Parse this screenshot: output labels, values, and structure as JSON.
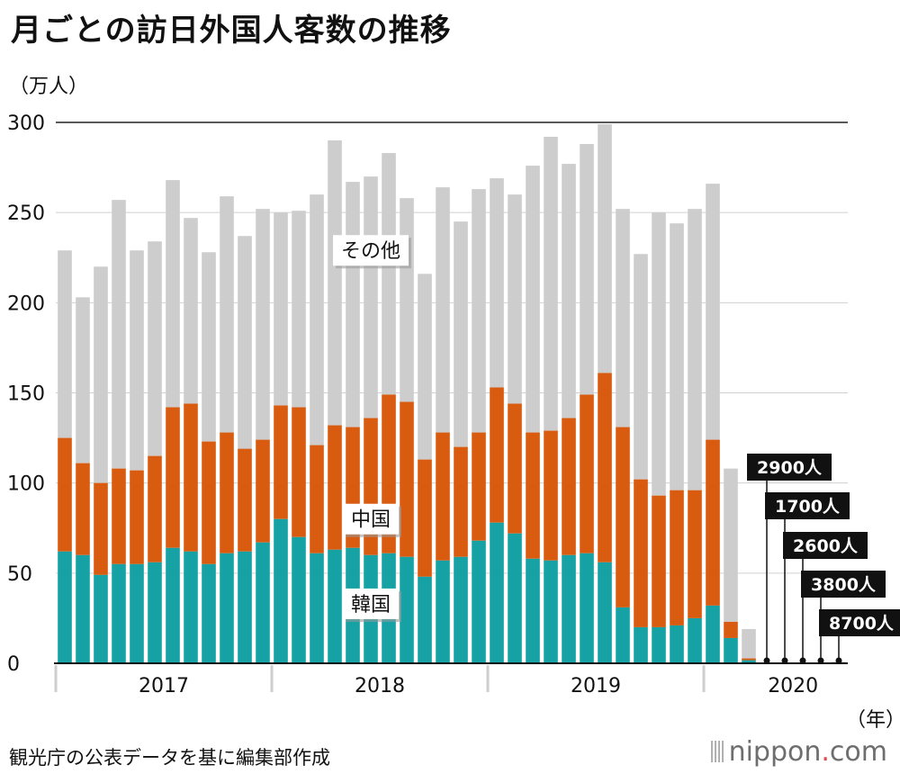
{
  "header": {
    "title": "月ごとの訪日外国人客数の推移",
    "unit": "（万人）",
    "year_unit": "（年）"
  },
  "footer": {
    "source": "観光庁の公表データを基に編集部作成",
    "brand_name": "nippon",
    "brand_dot": ".",
    "brand_suffix": "com"
  },
  "chart_data": {
    "type": "bar",
    "stacked": true,
    "ylim": [
      0,
      300
    ],
    "yticks": [
      0,
      50,
      100,
      150,
      200,
      250,
      300
    ],
    "grid": true,
    "year_labels": [
      "2017",
      "2018",
      "2019",
      "2020"
    ],
    "colors": {
      "韓国": "#16a2a4",
      "中国": "#d95b10",
      "その他": "#cdcdcd"
    },
    "series_labels": [
      "韓国",
      "中国",
      "その他"
    ],
    "months": [
      {
        "year": 2017,
        "month": 1,
        "korea": 62,
        "china": 63,
        "total": 229
      },
      {
        "year": 2017,
        "month": 2,
        "korea": 60,
        "china": 51,
        "total": 203
      },
      {
        "year": 2017,
        "month": 3,
        "korea": 49,
        "china": 51,
        "total": 220
      },
      {
        "year": 2017,
        "month": 4,
        "korea": 55,
        "china": 53,
        "total": 257
      },
      {
        "year": 2017,
        "month": 5,
        "korea": 55,
        "china": 52,
        "total": 229
      },
      {
        "year": 2017,
        "month": 6,
        "korea": 56,
        "china": 59,
        "total": 234
      },
      {
        "year": 2017,
        "month": 7,
        "korea": 64,
        "china": 78,
        "total": 268
      },
      {
        "year": 2017,
        "month": 8,
        "korea": 62,
        "china": 82,
        "total": 247
      },
      {
        "year": 2017,
        "month": 9,
        "korea": 55,
        "china": 68,
        "total": 228
      },
      {
        "year": 2017,
        "month": 10,
        "korea": 61,
        "china": 67,
        "total": 259
      },
      {
        "year": 2017,
        "month": 11,
        "korea": 62,
        "china": 57,
        "total": 237
      },
      {
        "year": 2017,
        "month": 12,
        "korea": 67,
        "china": 57,
        "total": 252
      },
      {
        "year": 2018,
        "month": 1,
        "korea": 80,
        "china": 63,
        "total": 250
      },
      {
        "year": 2018,
        "month": 2,
        "korea": 70,
        "china": 72,
        "total": 251
      },
      {
        "year": 2018,
        "month": 3,
        "korea": 61,
        "china": 60,
        "total": 260
      },
      {
        "year": 2018,
        "month": 4,
        "korea": 63,
        "china": 69,
        "total": 290
      },
      {
        "year": 2018,
        "month": 5,
        "korea": 64,
        "china": 67,
        "total": 267
      },
      {
        "year": 2018,
        "month": 6,
        "korea": 60,
        "china": 76,
        "total": 270
      },
      {
        "year": 2018,
        "month": 7,
        "korea": 61,
        "china": 88,
        "total": 283
      },
      {
        "year": 2018,
        "month": 8,
        "korea": 59,
        "china": 86,
        "total": 258
      },
      {
        "year": 2018,
        "month": 9,
        "korea": 48,
        "china": 65,
        "total": 216
      },
      {
        "year": 2018,
        "month": 10,
        "korea": 57,
        "china": 71,
        "total": 264
      },
      {
        "year": 2018,
        "month": 11,
        "korea": 59,
        "china": 61,
        "total": 245
      },
      {
        "year": 2018,
        "month": 12,
        "korea": 68,
        "china": 60,
        "total": 263
      },
      {
        "year": 2019,
        "month": 1,
        "korea": 78,
        "china": 75,
        "total": 269
      },
      {
        "year": 2019,
        "month": 2,
        "korea": 72,
        "china": 72,
        "total": 260
      },
      {
        "year": 2019,
        "month": 3,
        "korea": 58,
        "china": 70,
        "total": 276
      },
      {
        "year": 2019,
        "month": 4,
        "korea": 57,
        "china": 72,
        "total": 292
      },
      {
        "year": 2019,
        "month": 5,
        "korea": 60,
        "china": 76,
        "total": 277
      },
      {
        "year": 2019,
        "month": 6,
        "korea": 61,
        "china": 88,
        "total": 288
      },
      {
        "year": 2019,
        "month": 7,
        "korea": 56,
        "china": 105,
        "total": 299
      },
      {
        "year": 2019,
        "month": 8,
        "korea": 31,
        "china": 100,
        "total": 252
      },
      {
        "year": 2019,
        "month": 9,
        "korea": 20,
        "china": 82,
        "total": 227
      },
      {
        "year": 2019,
        "month": 10,
        "korea": 20,
        "china": 73,
        "total": 250
      },
      {
        "year": 2019,
        "month": 11,
        "korea": 21,
        "china": 75,
        "total": 244
      },
      {
        "year": 2019,
        "month": 12,
        "korea": 25,
        "china": 71,
        "total": 252
      },
      {
        "year": 2020,
        "month": 1,
        "korea": 32,
        "china": 92,
        "total": 266
      },
      {
        "year": 2020,
        "month": 2,
        "korea": 14,
        "china": 9,
        "total": 108
      },
      {
        "year": 2020,
        "month": 3,
        "korea": 1.7,
        "china": 1.0,
        "total": 19
      },
      {
        "year": 2020,
        "month": 4,
        "korea": 0,
        "china": 0,
        "total": 0.29,
        "label": "2900人"
      },
      {
        "year": 2020,
        "month": 5,
        "korea": 0,
        "china": 0,
        "total": 0.17,
        "label": "1700人"
      },
      {
        "year": 2020,
        "month": 6,
        "korea": 0,
        "china": 0,
        "total": 0.26,
        "label": "2600人"
      },
      {
        "year": 2020,
        "month": 7,
        "korea": 0,
        "china": 0,
        "total": 0.38,
        "label": "3800人"
      },
      {
        "year": 2020,
        "month": 8,
        "korea": 0,
        "china": 0,
        "total": 0.87,
        "label": "8700人"
      }
    ]
  }
}
